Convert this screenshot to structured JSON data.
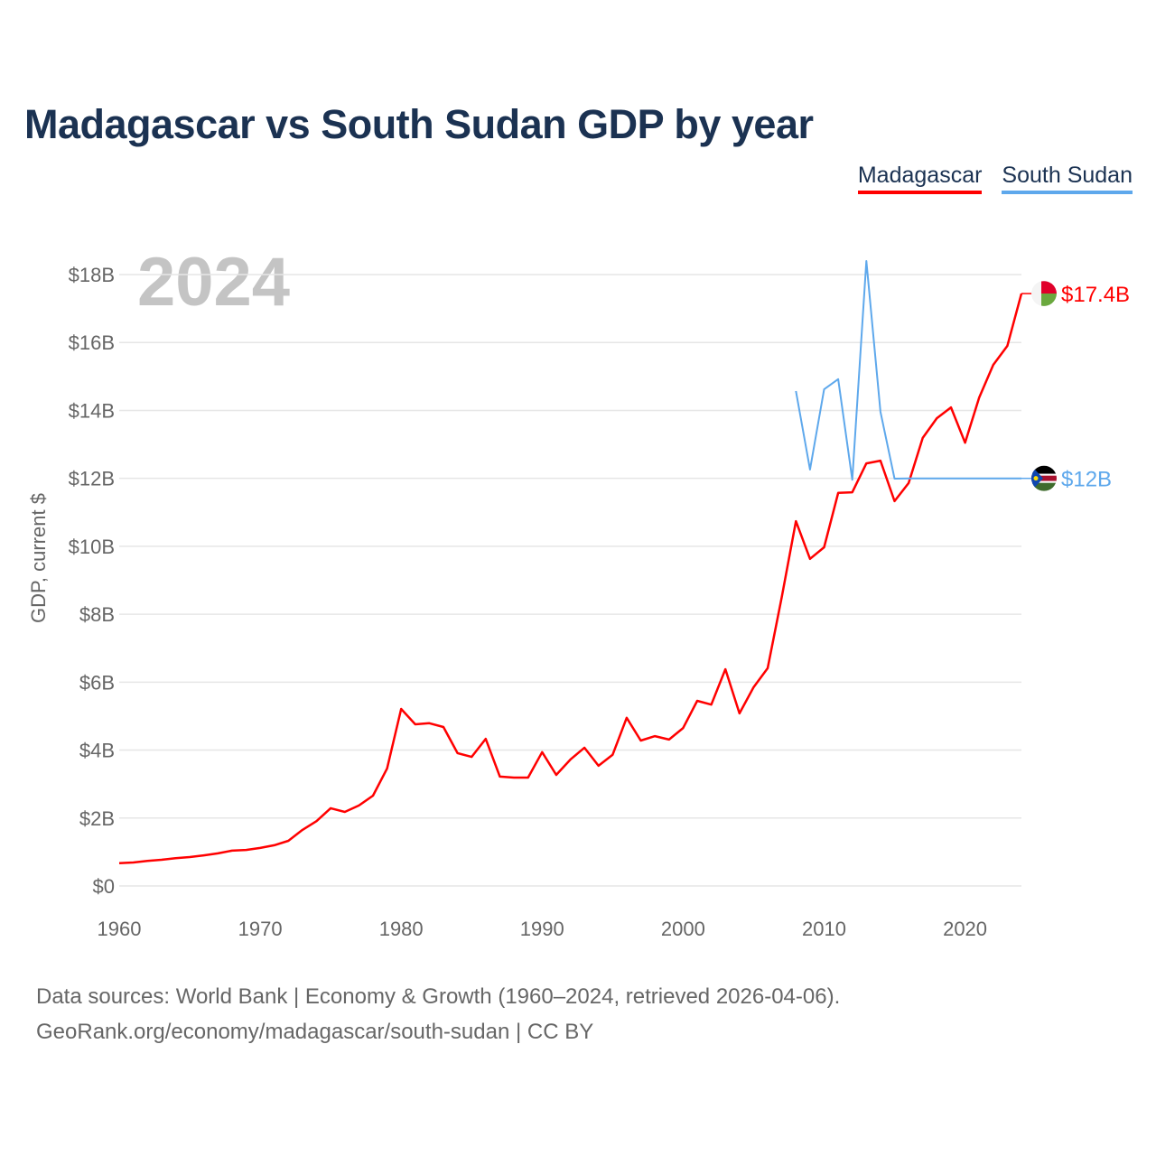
{
  "chart_data": {
    "type": "line",
    "title": "Madagascar vs South Sudan GDP by year",
    "ylabel": "GDP, current $",
    "xlabel": "",
    "year_watermark": "2024",
    "xlim": [
      1960,
      2024
    ],
    "ylim": [
      0,
      18
    ],
    "x_ticks": [
      1960,
      1970,
      1980,
      1990,
      2000,
      2010,
      2020
    ],
    "y_ticks": [
      0,
      2,
      4,
      6,
      8,
      10,
      12,
      14,
      16,
      18
    ],
    "y_tick_labels": [
      "$0",
      "$2B",
      "$4B",
      "$6B",
      "$8B",
      "$10B",
      "$12B",
      "$14B",
      "$16B",
      "$18B"
    ],
    "grid": true,
    "legend_position": "top-right",
    "series": [
      {
        "name": "Madagascar",
        "color": "#ff0000",
        "end_label": "$17.4B",
        "x": [
          1960,
          1961,
          1962,
          1963,
          1964,
          1965,
          1966,
          1967,
          1968,
          1969,
          1970,
          1971,
          1972,
          1973,
          1974,
          1975,
          1976,
          1977,
          1978,
          1979,
          1980,
          1981,
          1982,
          1983,
          1984,
          1985,
          1986,
          1987,
          1988,
          1989,
          1990,
          1991,
          1992,
          1993,
          1994,
          1995,
          1996,
          1997,
          1998,
          1999,
          2000,
          2001,
          2002,
          2003,
          2004,
          2005,
          2006,
          2007,
          2008,
          2009,
          2010,
          2011,
          2012,
          2013,
          2014,
          2015,
          2016,
          2017,
          2018,
          2019,
          2020,
          2021,
          2022,
          2023,
          2024
        ],
        "values": [
          0.67,
          0.69,
          0.74,
          0.77,
          0.82,
          0.85,
          0.9,
          0.96,
          1.04,
          1.06,
          1.12,
          1.2,
          1.33,
          1.65,
          1.91,
          2.29,
          2.18,
          2.37,
          2.66,
          3.46,
          5.21,
          4.76,
          4.79,
          4.68,
          3.91,
          3.8,
          4.33,
          3.22,
          3.19,
          3.19,
          3.94,
          3.27,
          3.72,
          4.07,
          3.54,
          3.86,
          4.95,
          4.28,
          4.41,
          4.31,
          4.65,
          5.45,
          5.34,
          6.38,
          5.08,
          5.85,
          6.41,
          8.5,
          10.74,
          9.63,
          9.97,
          11.57,
          11.59,
          12.44,
          12.52,
          11.33,
          11.86,
          13.19,
          13.77,
          14.09,
          13.05,
          14.38,
          15.34,
          15.9,
          17.44
        ]
      },
      {
        "name": "South Sudan",
        "color": "#5ea8ec",
        "end_label": "$12B",
        "x": [
          2008,
          2009,
          2010,
          2011,
          2012,
          2013,
          2014,
          2015,
          2016,
          2017,
          2018,
          2019,
          2020,
          2021,
          2022,
          2023,
          2024
        ],
        "values": [
          14.57,
          12.26,
          14.62,
          14.92,
          11.96,
          18.4,
          13.96,
          11.99,
          12.0,
          12.0,
          12.0,
          12.0,
          12.0,
          12.0,
          12.0,
          12.0,
          12.0
        ]
      }
    ]
  },
  "footer": {
    "line1": "Data sources: World Bank | Economy & Growth (1960–2024, retrieved 2026-04-06).",
    "line2": "GeoRank.org/economy/madagascar/south-sudan | CC BY"
  }
}
